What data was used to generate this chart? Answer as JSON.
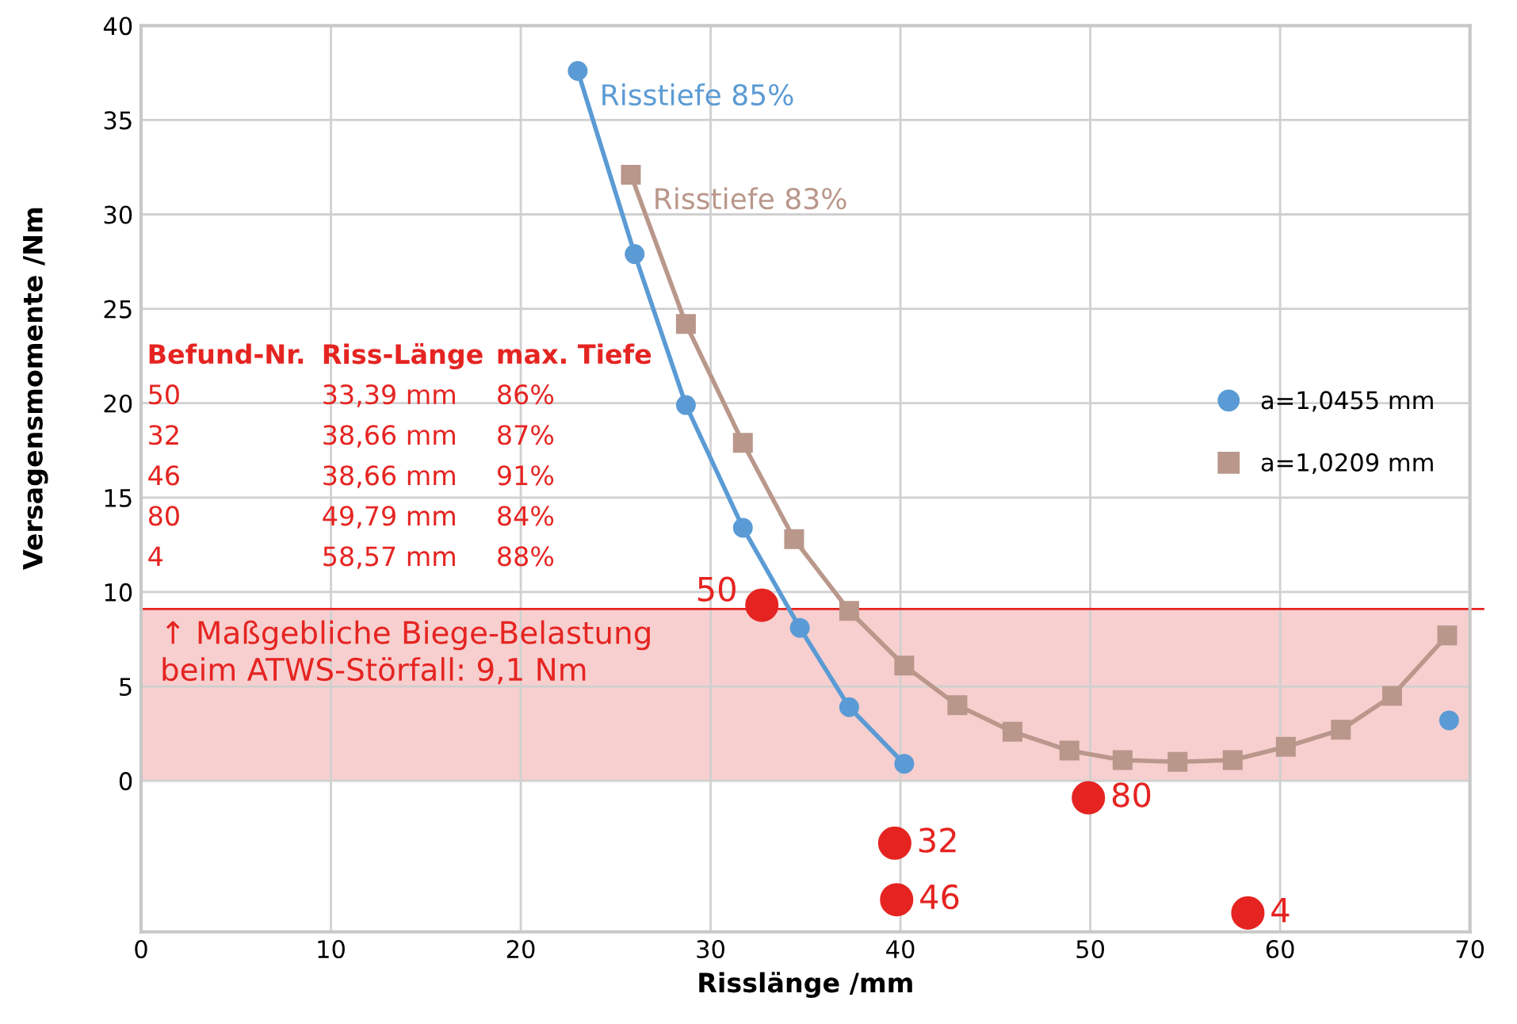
{
  "chart_data": {
    "type": "line",
    "xlabel": "Risslänge /mm",
    "ylabel": "Versagensmomente /Nm",
    "xlim": [
      0,
      70
    ],
    "xticks": [
      0,
      10,
      20,
      30,
      40,
      50,
      60,
      70
    ],
    "ylim": [
      -8,
      40
    ],
    "yticks": [
      0,
      5,
      10,
      15,
      20,
      25,
      30,
      35,
      40
    ],
    "grid": true,
    "legend": "right",
    "series": [
      {
        "name": "a=1,0455 mm",
        "color": "#5b9bd5",
        "marker": "circle",
        "x": [
          23,
          26,
          28.7,
          31.7,
          34.7,
          37.3,
          40.2,
          55,
          68.9
        ],
        "values": [
          37.6,
          27.9,
          19.9,
          13.4,
          8.1,
          3.9,
          0.9,
          null,
          3.2
        ]
      },
      {
        "name": "a=1,0209 mm",
        "color": "#b9978b",
        "marker": "square",
        "x": [
          25.8,
          28.7,
          31.7,
          34.4,
          37.3,
          40.2,
          43.0,
          45.9,
          48.9,
          51.7,
          54.6,
          57.5,
          60.3,
          63.2,
          65.9,
          68.8
        ],
        "values": [
          32.1,
          24.2,
          17.9,
          12.8,
          9.0,
          6.1,
          4.0,
          2.6,
          1.6,
          1.1,
          1.0,
          1.1,
          1.8,
          2.7,
          4.5,
          7.7
        ]
      },
      {
        "type": "scatter",
        "color": "#e52421",
        "marker": "circle",
        "x": [
          32.7,
          39.7,
          39.8,
          49.9,
          58.3
        ],
        "values": [
          9.3,
          -3.3,
          -6.3,
          -0.9,
          -7.0
        ]
      }
    ],
    "ref_lines": [
      {
        "axis": "y",
        "value": 9.1,
        "color": "#e52421"
      }
    ],
    "bands": [
      {
        "axis": "y",
        "from": 0,
        "to": 9.1,
        "color": "#f7cfcf",
        "label": "↑ Maßgebliche Biege-Belastung\nbeim ATWS-Störfall: 9,1 Nm"
      }
    ],
    "annotations": [
      {
        "text": "Risstiefe 85%",
        "x": 23,
        "y": 37.6
      },
      {
        "text": "Risstiefe 83%",
        "x": 25.8,
        "y": 32.1
      },
      {
        "text": "50",
        "x": 32.7,
        "y": 9.3
      },
      {
        "text": "32",
        "x": 39.7,
        "y": -3.3
      },
      {
        "text": "46",
        "x": 39.8,
        "y": -6.3
      },
      {
        "text": "80",
        "x": 49.9,
        "y": -0.9
      },
      {
        "text": "4",
        "x": 58.3,
        "y": -7.0
      },
      "Befund-Nr.",
      "Riss-Länge",
      "max. Tiefe",
      "50",
      "33,39 mm",
      "86%",
      "32",
      "38,66 mm",
      "87%",
      "46",
      "38,66 mm",
      "91%",
      "80",
      "49,79 mm",
      "84%",
      "4",
      "58,57 mm",
      "88%"
    ]
  }
}
